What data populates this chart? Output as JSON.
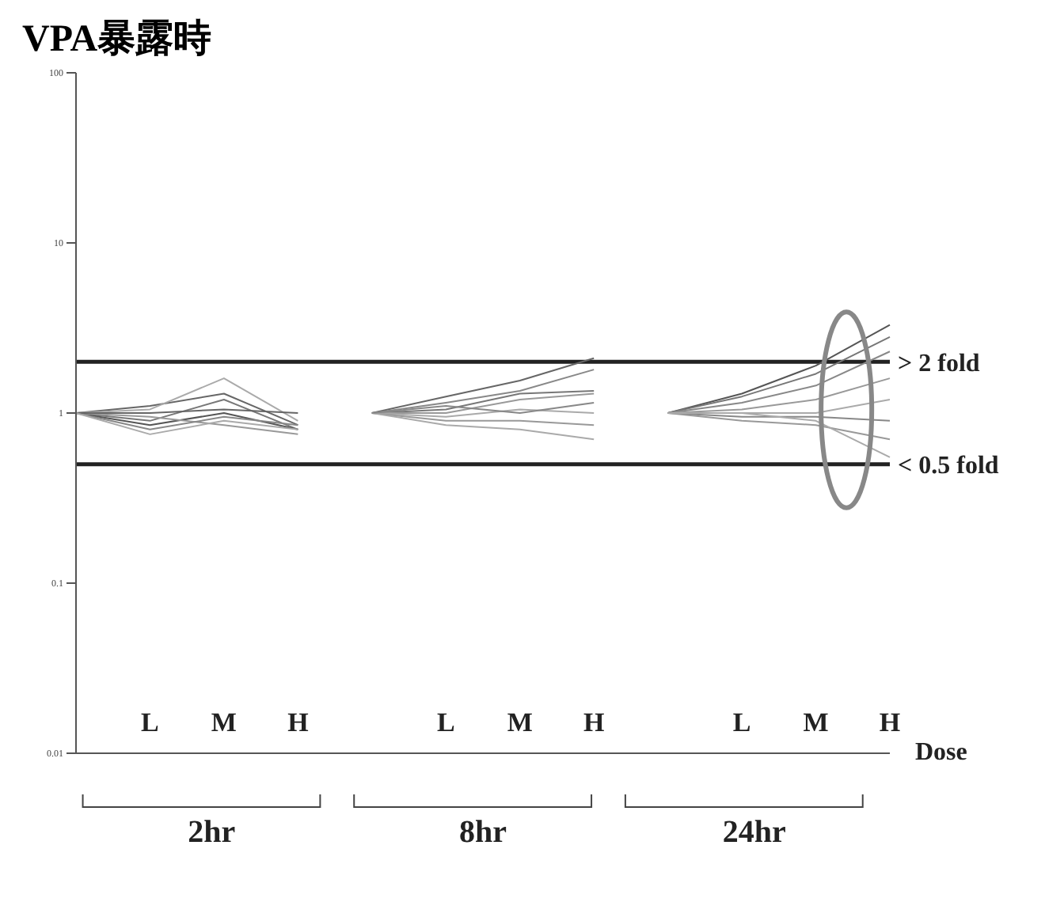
{
  "chart_data": {
    "type": "line",
    "title": "VPA暴露時",
    "log": "y",
    "ylim": [
      0.01,
      100
    ],
    "yticks": [
      0.01,
      0.1,
      1,
      10,
      100
    ],
    "grid": false,
    "legend": false,
    "categories": [
      null,
      "L",
      "M",
      "H",
      null,
      "L",
      "M",
      "H",
      null,
      "L",
      "M",
      "H"
    ],
    "annotations": [
      "2hr",
      "8hr",
      "24hr",
      "Dose"
    ],
    "ref_lines": [
      {
        "axis": "y",
        "value": 2,
        "label": "> 2 fold",
        "color": "#222222"
      },
      {
        "axis": "y",
        "value": 0.5,
        "label": "< 0.5 fold",
        "color": "#222222"
      }
    ],
    "series": [
      {
        "color": "#666666",
        "values": [
          1,
          1.1,
          1.3,
          0.85,
          null,
          null,
          null,
          null,
          null,
          null,
          null,
          null
        ]
      },
      {
        "color": "#aaaaaa",
        "values": [
          1,
          1.05,
          1.6,
          0.9,
          null,
          null,
          null,
          null,
          null,
          null,
          null,
          null
        ]
      },
      {
        "color": "#777777",
        "values": [
          1,
          0.9,
          1.2,
          0.8,
          null,
          null,
          null,
          null,
          null,
          null,
          null,
          null
        ]
      },
      {
        "color": "#555555",
        "values": [
          1,
          0.85,
          1,
          0.8,
          null,
          null,
          null,
          null,
          null,
          null,
          null,
          null
        ]
      },
      {
        "color": "#999999",
        "values": [
          1,
          0.95,
          0.85,
          0.75,
          null,
          null,
          null,
          null,
          null,
          null,
          null,
          null
        ]
      },
      {
        "color": "#888888",
        "values": [
          1,
          0.8,
          0.95,
          0.85,
          null,
          null,
          null,
          null,
          null,
          null,
          null,
          null
        ]
      },
      {
        "color": "#666666",
        "values": [
          1,
          1,
          1.05,
          1,
          null,
          null,
          null,
          null,
          null,
          null,
          null,
          null
        ]
      },
      {
        "color": "#aaaaaa",
        "values": [
          1,
          0.75,
          0.9,
          0.8,
          null,
          null,
          null,
          null,
          null,
          null,
          null,
          null
        ]
      },
      {
        "color": "#666666",
        "values": [
          null,
          null,
          null,
          null,
          1,
          1.25,
          1.55,
          2.1,
          null,
          null,
          null,
          null
        ]
      },
      {
        "color": "#888888",
        "values": [
          null,
          null,
          null,
          null,
          1,
          1.15,
          1.35,
          1.8,
          null,
          null,
          null,
          null
        ]
      },
      {
        "color": "#777777",
        "values": [
          null,
          null,
          null,
          null,
          1,
          1.05,
          1.3,
          1.35,
          null,
          null,
          null,
          null
        ]
      },
      {
        "color": "#999999",
        "values": [
          null,
          null,
          null,
          null,
          1,
          1,
          1.2,
          1.3,
          null,
          null,
          null,
          null
        ]
      },
      {
        "color": "#aaaaaa",
        "values": [
          null,
          null,
          null,
          null,
          1,
          0.95,
          1.05,
          1,
          null,
          null,
          null,
          null
        ]
      },
      {
        "color": "#999999",
        "values": [
          null,
          null,
          null,
          null,
          1,
          0.9,
          0.9,
          0.85,
          null,
          null,
          null,
          null
        ]
      },
      {
        "color": "#aaaaaa",
        "values": [
          null,
          null,
          null,
          null,
          1,
          0.85,
          0.8,
          0.7,
          null,
          null,
          null,
          null
        ]
      },
      {
        "color": "#888888",
        "values": [
          null,
          null,
          null,
          null,
          1,
          1.1,
          1,
          1.15,
          null,
          null,
          null,
          null
        ]
      },
      {
        "color": "#555555",
        "values": [
          null,
          null,
          null,
          null,
          null,
          null,
          null,
          null,
          1,
          1.3,
          1.9,
          3.3
        ]
      },
      {
        "color": "#777777",
        "values": [
          null,
          null,
          null,
          null,
          null,
          null,
          null,
          null,
          1,
          1.25,
          1.7,
          2.8
        ]
      },
      {
        "color": "#888888",
        "values": [
          null,
          null,
          null,
          null,
          null,
          null,
          null,
          null,
          1,
          1.15,
          1.45,
          2.3
        ]
      },
      {
        "color": "#999999",
        "values": [
          null,
          null,
          null,
          null,
          null,
          null,
          null,
          null,
          1,
          1.05,
          1.2,
          1.6
        ]
      },
      {
        "color": "#aaaaaa",
        "values": [
          null,
          null,
          null,
          null,
          null,
          null,
          null,
          null,
          1,
          1,
          1,
          1.2
        ]
      },
      {
        "color": "#888888",
        "values": [
          null,
          null,
          null,
          null,
          null,
          null,
          null,
          null,
          1,
          0.95,
          0.95,
          0.9
        ]
      },
      {
        "color": "#999999",
        "values": [
          null,
          null,
          null,
          null,
          null,
          null,
          null,
          null,
          1,
          0.9,
          0.85,
          0.7
        ]
      },
      {
        "color": "#aaaaaa",
        "values": [
          null,
          null,
          null,
          null,
          null,
          null,
          null,
          null,
          1,
          1,
          0.9,
          0.55
        ]
      }
    ]
  }
}
